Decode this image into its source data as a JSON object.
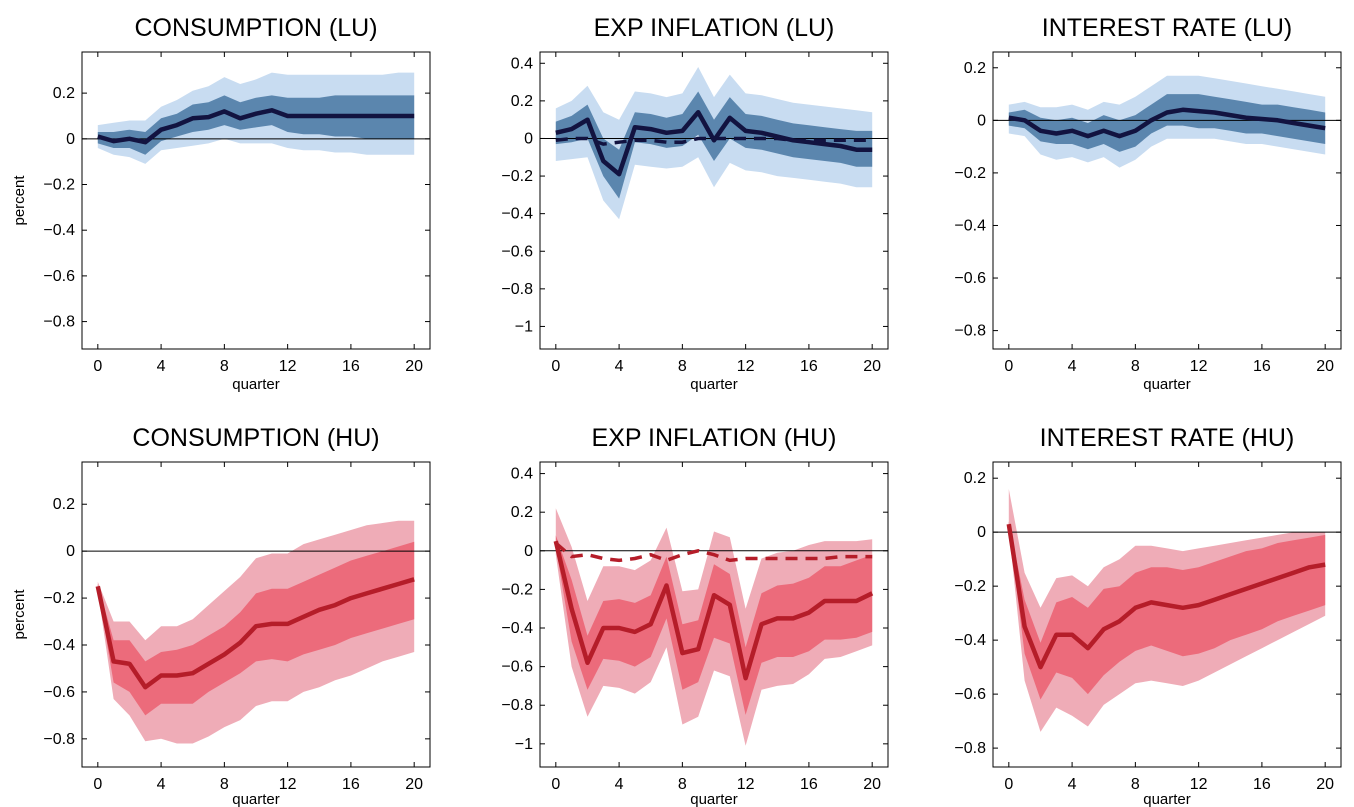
{
  "chart_data": [
    {
      "type": "area",
      "title": "CONSUMPTION (LU)",
      "xlabel": "quarter",
      "ylabel": "percent",
      "xlim": [
        -1,
        21
      ],
      "ylim": [
        -0.92,
        0.38
      ],
      "xticks": [
        0,
        4,
        8,
        12,
        16,
        20
      ],
      "yticks": [
        0.2,
        0,
        -0.2,
        -0.4,
        -0.6,
        -0.8
      ],
      "ytick_labels": [
        "0.2",
        "0",
        "−0.2",
        "−0.4",
        "−0.6",
        "−0.8"
      ],
      "palette": "blue",
      "x": [
        0,
        1,
        2,
        3,
        4,
        5,
        6,
        7,
        8,
        9,
        10,
        11,
        12,
        13,
        14,
        15,
        16,
        17,
        18,
        19,
        20
      ],
      "median": [
        0.01,
        -0.01,
        0.0,
        -0.015,
        0.04,
        0.06,
        0.09,
        0.095,
        0.12,
        0.09,
        0.11,
        0.125,
        0.1,
        0.1,
        0.1,
        0.1,
        0.1,
        0.1,
        0.1,
        0.1,
        0.1
      ],
      "band_inner_low": [
        -0.02,
        -0.04,
        -0.04,
        -0.07,
        -0.01,
        0.01,
        0.03,
        0.04,
        0.06,
        0.04,
        0.05,
        0.06,
        0.03,
        0.02,
        0.02,
        0.01,
        0.01,
        0.0,
        0.0,
        0.0,
        0.0
      ],
      "band_inner_high": [
        0.03,
        0.03,
        0.04,
        0.03,
        0.09,
        0.11,
        0.15,
        0.16,
        0.19,
        0.16,
        0.18,
        0.19,
        0.18,
        0.18,
        0.18,
        0.19,
        0.19,
        0.19,
        0.19,
        0.19,
        0.19
      ],
      "band_outer_low": [
        -0.04,
        -0.07,
        -0.08,
        -0.11,
        -0.05,
        -0.04,
        -0.03,
        -0.02,
        0.0,
        -0.02,
        -0.02,
        -0.02,
        -0.04,
        -0.05,
        -0.05,
        -0.06,
        -0.06,
        -0.07,
        -0.07,
        -0.07,
        -0.07
      ],
      "band_outer_high": [
        0.06,
        0.07,
        0.08,
        0.08,
        0.14,
        0.17,
        0.21,
        0.23,
        0.27,
        0.24,
        0.26,
        0.29,
        0.28,
        0.28,
        0.28,
        0.28,
        0.28,
        0.28,
        0.28,
        0.29,
        0.29
      ],
      "reference": null
    },
    {
      "type": "area",
      "title": "EXP INFLATION (LU)",
      "xlabel": "quarter",
      "ylabel": "",
      "xlim": [
        -1,
        21
      ],
      "ylim": [
        -1.12,
        0.46
      ],
      "xticks": [
        0,
        4,
        8,
        12,
        16,
        20
      ],
      "yticks": [
        0.4,
        0.2,
        0,
        -0.2,
        -0.4,
        -0.6,
        -0.8,
        -1
      ],
      "ytick_labels": [
        "0.4",
        "0.2",
        "0",
        "−0.2",
        "−0.4",
        "−0.6",
        "−0.8",
        "−1"
      ],
      "palette": "blue",
      "x": [
        0,
        1,
        2,
        3,
        4,
        5,
        6,
        7,
        8,
        9,
        10,
        11,
        12,
        13,
        14,
        15,
        16,
        17,
        18,
        19,
        20
      ],
      "median": [
        0.03,
        0.05,
        0.1,
        -0.12,
        -0.19,
        0.06,
        0.05,
        0.03,
        0.04,
        0.14,
        -0.01,
        0.11,
        0.04,
        0.03,
        0.01,
        -0.01,
        -0.02,
        -0.03,
        -0.04,
        -0.06,
        -0.06
      ],
      "band_inner_low": [
        -0.03,
        -0.02,
        0.0,
        -0.2,
        -0.32,
        -0.02,
        -0.03,
        -0.05,
        -0.04,
        0.02,
        -0.12,
        0.0,
        -0.05,
        -0.06,
        -0.08,
        -0.1,
        -0.11,
        -0.12,
        -0.13,
        -0.15,
        -0.15
      ],
      "band_inner_high": [
        0.09,
        0.12,
        0.18,
        0.0,
        -0.06,
        0.14,
        0.13,
        0.11,
        0.13,
        0.25,
        0.1,
        0.22,
        0.13,
        0.12,
        0.1,
        0.08,
        0.07,
        0.06,
        0.05,
        0.04,
        0.04
      ],
      "band_outer_low": [
        -0.12,
        -0.11,
        -0.1,
        -0.33,
        -0.43,
        -0.14,
        -0.15,
        -0.16,
        -0.15,
        -0.1,
        -0.26,
        -0.13,
        -0.17,
        -0.18,
        -0.2,
        -0.21,
        -0.22,
        -0.23,
        -0.24,
        -0.26,
        -0.26
      ],
      "band_outer_high": [
        0.16,
        0.2,
        0.28,
        0.14,
        0.1,
        0.25,
        0.24,
        0.22,
        0.24,
        0.38,
        0.22,
        0.34,
        0.24,
        0.23,
        0.21,
        0.19,
        0.18,
        0.17,
        0.16,
        0.15,
        0.14
      ],
      "reference": [
        -0.01,
        0.0,
        0.0,
        -0.03,
        -0.02,
        -0.01,
        -0.01,
        -0.02,
        -0.02,
        0.0,
        0.0,
        0.0,
        0.0,
        0.0,
        0.0,
        -0.01,
        -0.01,
        -0.01,
        -0.01,
        -0.01,
        -0.01
      ]
    },
    {
      "type": "area",
      "title": "INTEREST RATE (LU)",
      "xlabel": "quarter",
      "ylabel": "",
      "xlim": [
        -1,
        21
      ],
      "ylim": [
        -0.87,
        0.26
      ],
      "xticks": [
        0,
        4,
        8,
        12,
        16,
        20
      ],
      "yticks": [
        0.2,
        0,
        -0.2,
        -0.4,
        -0.6,
        -0.8
      ],
      "ytick_labels": [
        "0.2",
        "0",
        "−0.2",
        "−0.4",
        "−0.6",
        "−0.8"
      ],
      "palette": "blue",
      "x": [
        0,
        1,
        2,
        3,
        4,
        5,
        6,
        7,
        8,
        9,
        10,
        11,
        12,
        13,
        14,
        15,
        16,
        17,
        18,
        19,
        20
      ],
      "median": [
        0.01,
        0.0,
        -0.04,
        -0.05,
        -0.04,
        -0.06,
        -0.04,
        -0.06,
        -0.04,
        0.0,
        0.03,
        0.04,
        0.035,
        0.03,
        0.02,
        0.01,
        0.005,
        0.0,
        -0.01,
        -0.02,
        -0.03
      ],
      "band_inner_low": [
        -0.02,
        -0.03,
        -0.08,
        -0.09,
        -0.09,
        -0.11,
        -0.09,
        -0.12,
        -0.1,
        -0.05,
        -0.02,
        -0.02,
        -0.03,
        -0.03,
        -0.04,
        -0.05,
        -0.05,
        -0.06,
        -0.07,
        -0.08,
        -0.09
      ],
      "band_inner_high": [
        0.03,
        0.04,
        0.01,
        0.0,
        0.01,
        -0.01,
        0.02,
        0.0,
        0.02,
        0.06,
        0.1,
        0.1,
        0.1,
        0.09,
        0.08,
        0.07,
        0.06,
        0.06,
        0.05,
        0.04,
        0.03
      ],
      "band_outer_low": [
        -0.05,
        -0.06,
        -0.13,
        -0.15,
        -0.14,
        -0.16,
        -0.14,
        -0.18,
        -0.15,
        -0.1,
        -0.07,
        -0.07,
        -0.07,
        -0.07,
        -0.08,
        -0.09,
        -0.09,
        -0.1,
        -0.11,
        -0.12,
        -0.13
      ],
      "band_outer_high": [
        0.06,
        0.07,
        0.05,
        0.05,
        0.06,
        0.04,
        0.07,
        0.06,
        0.09,
        0.13,
        0.17,
        0.17,
        0.17,
        0.16,
        0.15,
        0.14,
        0.13,
        0.12,
        0.11,
        0.1,
        0.09
      ],
      "reference": null
    },
    {
      "type": "area",
      "title": "CONSUMPTION (HU)",
      "xlabel": "quarter",
      "ylabel": "percent",
      "xlim": [
        -1,
        21
      ],
      "ylim": [
        -0.92,
        0.38
      ],
      "xticks": [
        0,
        4,
        8,
        12,
        16,
        20
      ],
      "yticks": [
        0.2,
        0,
        -0.2,
        -0.4,
        -0.6,
        -0.8
      ],
      "ytick_labels": [
        "0.2",
        "0",
        "−0.2",
        "−0.4",
        "−0.6",
        "−0.8"
      ],
      "palette": "red",
      "x": [
        0,
        1,
        2,
        3,
        4,
        5,
        6,
        7,
        8,
        9,
        10,
        11,
        12,
        13,
        14,
        15,
        16,
        17,
        18,
        19,
        20
      ],
      "median": [
        -0.15,
        -0.47,
        -0.48,
        -0.58,
        -0.53,
        -0.53,
        -0.52,
        -0.48,
        -0.44,
        -0.39,
        -0.32,
        -0.31,
        -0.31,
        -0.28,
        -0.25,
        -0.23,
        -0.2,
        -0.18,
        -0.16,
        -0.14,
        -0.12
      ],
      "band_inner_low": [
        -0.16,
        -0.56,
        -0.6,
        -0.7,
        -0.65,
        -0.65,
        -0.65,
        -0.6,
        -0.56,
        -0.52,
        -0.47,
        -0.46,
        -0.47,
        -0.44,
        -0.42,
        -0.4,
        -0.37,
        -0.35,
        -0.33,
        -0.31,
        -0.29
      ],
      "band_inner_high": [
        -0.14,
        -0.38,
        -0.38,
        -0.47,
        -0.43,
        -0.42,
        -0.4,
        -0.36,
        -0.32,
        -0.26,
        -0.18,
        -0.16,
        -0.16,
        -0.13,
        -0.1,
        -0.07,
        -0.04,
        -0.02,
        0.0,
        0.02,
        0.04
      ],
      "band_outer_low": [
        -0.17,
        -0.63,
        -0.7,
        -0.81,
        -0.8,
        -0.82,
        -0.82,
        -0.79,
        -0.75,
        -0.72,
        -0.66,
        -0.64,
        -0.64,
        -0.6,
        -0.58,
        -0.55,
        -0.53,
        -0.5,
        -0.47,
        -0.45,
        -0.43
      ],
      "band_outer_high": [
        -0.13,
        -0.3,
        -0.3,
        -0.38,
        -0.32,
        -0.32,
        -0.29,
        -0.23,
        -0.17,
        -0.11,
        -0.03,
        -0.01,
        -0.01,
        0.03,
        0.05,
        0.07,
        0.09,
        0.11,
        0.12,
        0.13,
        0.13
      ],
      "reference": null
    },
    {
      "type": "area",
      "title": "EXP INFLATION (HU)",
      "xlabel": "quarter",
      "ylabel": "",
      "xlim": [
        -1,
        21
      ],
      "ylim": [
        -1.12,
        0.46
      ],
      "xticks": [
        0,
        4,
        8,
        12,
        16,
        20
      ],
      "yticks": [
        0.4,
        0.2,
        0,
        -0.2,
        -0.4,
        -0.6,
        -0.8,
        -1
      ],
      "ytick_labels": [
        "0.4",
        "0.2",
        "0",
        "−0.2",
        "−0.4",
        "−0.6",
        "−0.8",
        "−1"
      ],
      "palette": "red",
      "x": [
        0,
        1,
        2,
        3,
        4,
        5,
        6,
        7,
        8,
        9,
        10,
        11,
        12,
        13,
        14,
        15,
        16,
        17,
        18,
        19,
        20
      ],
      "median": [
        0.05,
        -0.3,
        -0.58,
        -0.4,
        -0.4,
        -0.42,
        -0.38,
        -0.18,
        -0.53,
        -0.51,
        -0.23,
        -0.28,
        -0.66,
        -0.38,
        -0.35,
        -0.35,
        -0.32,
        -0.26,
        -0.26,
        -0.26,
        -0.22
      ],
      "band_inner_low": [
        0.02,
        -0.47,
        -0.72,
        -0.56,
        -0.57,
        -0.6,
        -0.55,
        -0.35,
        -0.72,
        -0.68,
        -0.45,
        -0.48,
        -0.85,
        -0.58,
        -0.55,
        -0.55,
        -0.52,
        -0.46,
        -0.46,
        -0.45,
        -0.42
      ],
      "band_inner_high": [
        0.08,
        -0.15,
        -0.44,
        -0.26,
        -0.25,
        -0.27,
        -0.23,
        -0.03,
        -0.38,
        -0.36,
        -0.07,
        -0.12,
        -0.5,
        -0.22,
        -0.18,
        -0.17,
        -0.14,
        -0.08,
        -0.08,
        -0.05,
        -0.02
      ],
      "band_outer_low": [
        -0.02,
        -0.6,
        -0.86,
        -0.7,
        -0.71,
        -0.74,
        -0.68,
        -0.5,
        -0.9,
        -0.86,
        -0.62,
        -0.65,
        -1.01,
        -0.72,
        -0.7,
        -0.69,
        -0.64,
        -0.56,
        -0.55,
        -0.52,
        -0.49
      ],
      "band_outer_high": [
        0.22,
        0.02,
        -0.26,
        -0.08,
        -0.08,
        -0.1,
        -0.05,
        0.12,
        -0.21,
        -0.2,
        0.1,
        0.07,
        -0.3,
        -0.04,
        -0.01,
        0.0,
        0.03,
        0.05,
        0.05,
        0.05,
        0.06
      ],
      "reference": [
        0.04,
        -0.03,
        -0.02,
        -0.04,
        -0.05,
        -0.04,
        -0.02,
        -0.05,
        -0.02,
        0.0,
        -0.02,
        -0.05,
        -0.04,
        -0.04,
        -0.04,
        -0.04,
        -0.04,
        -0.04,
        -0.03,
        -0.03,
        -0.03
      ]
    },
    {
      "type": "area",
      "title": "INTEREST RATE (HU)",
      "xlabel": "quarter",
      "ylabel": "",
      "xlim": [
        -1,
        21
      ],
      "ylim": [
        -0.87,
        0.26
      ],
      "xticks": [
        0,
        4,
        8,
        12,
        16,
        20
      ],
      "yticks": [
        0.2,
        0,
        -0.2,
        -0.4,
        -0.6,
        -0.8
      ],
      "ytick_labels": [
        "0.2",
        "0",
        "−0.2",
        "−0.4",
        "−0.6",
        "−0.8"
      ],
      "palette": "red",
      "x": [
        0,
        1,
        2,
        3,
        4,
        5,
        6,
        7,
        8,
        9,
        10,
        11,
        12,
        13,
        14,
        15,
        16,
        17,
        18,
        19,
        20
      ],
      "median": [
        0.03,
        -0.35,
        -0.5,
        -0.38,
        -0.38,
        -0.43,
        -0.36,
        -0.33,
        -0.28,
        -0.26,
        -0.27,
        -0.28,
        -0.27,
        -0.25,
        -0.23,
        -0.21,
        -0.19,
        -0.17,
        -0.15,
        -0.13,
        -0.12
      ],
      "band_inner_low": [
        0.02,
        -0.45,
        -0.62,
        -0.52,
        -0.54,
        -0.6,
        -0.53,
        -0.48,
        -0.44,
        -0.42,
        -0.44,
        -0.46,
        -0.45,
        -0.43,
        -0.4,
        -0.38,
        -0.36,
        -0.33,
        -0.31,
        -0.29,
        -0.27
      ],
      "band_inner_high": [
        0.04,
        -0.25,
        -0.41,
        -0.26,
        -0.24,
        -0.28,
        -0.21,
        -0.2,
        -0.15,
        -0.13,
        -0.13,
        -0.14,
        -0.13,
        -0.11,
        -0.09,
        -0.07,
        -0.06,
        -0.04,
        -0.03,
        -0.02,
        -0.01
      ],
      "band_outer_low": [
        0.01,
        -0.55,
        -0.74,
        -0.65,
        -0.68,
        -0.72,
        -0.64,
        -0.6,
        -0.56,
        -0.55,
        -0.56,
        -0.57,
        -0.55,
        -0.52,
        -0.49,
        -0.46,
        -0.43,
        -0.4,
        -0.37,
        -0.34,
        -0.31
      ],
      "band_outer_high": [
        0.16,
        -0.15,
        -0.28,
        -0.17,
        -0.16,
        -0.2,
        -0.13,
        -0.1,
        -0.05,
        -0.05,
        -0.06,
        -0.07,
        -0.06,
        -0.05,
        -0.04,
        -0.03,
        -0.02,
        -0.01,
        0.0,
        0.0,
        0.0
      ],
      "reference": null
    }
  ],
  "colors": {
    "blue": {
      "outer": "#c8dcf1",
      "inner": "#5b86ae",
      "line": "#121340"
    },
    "red": {
      "outer": "#efacb7",
      "inner": "#ec6b7b",
      "line": "#b51d29"
    },
    "axis": "#000000",
    "zero_line": "#000000"
  }
}
